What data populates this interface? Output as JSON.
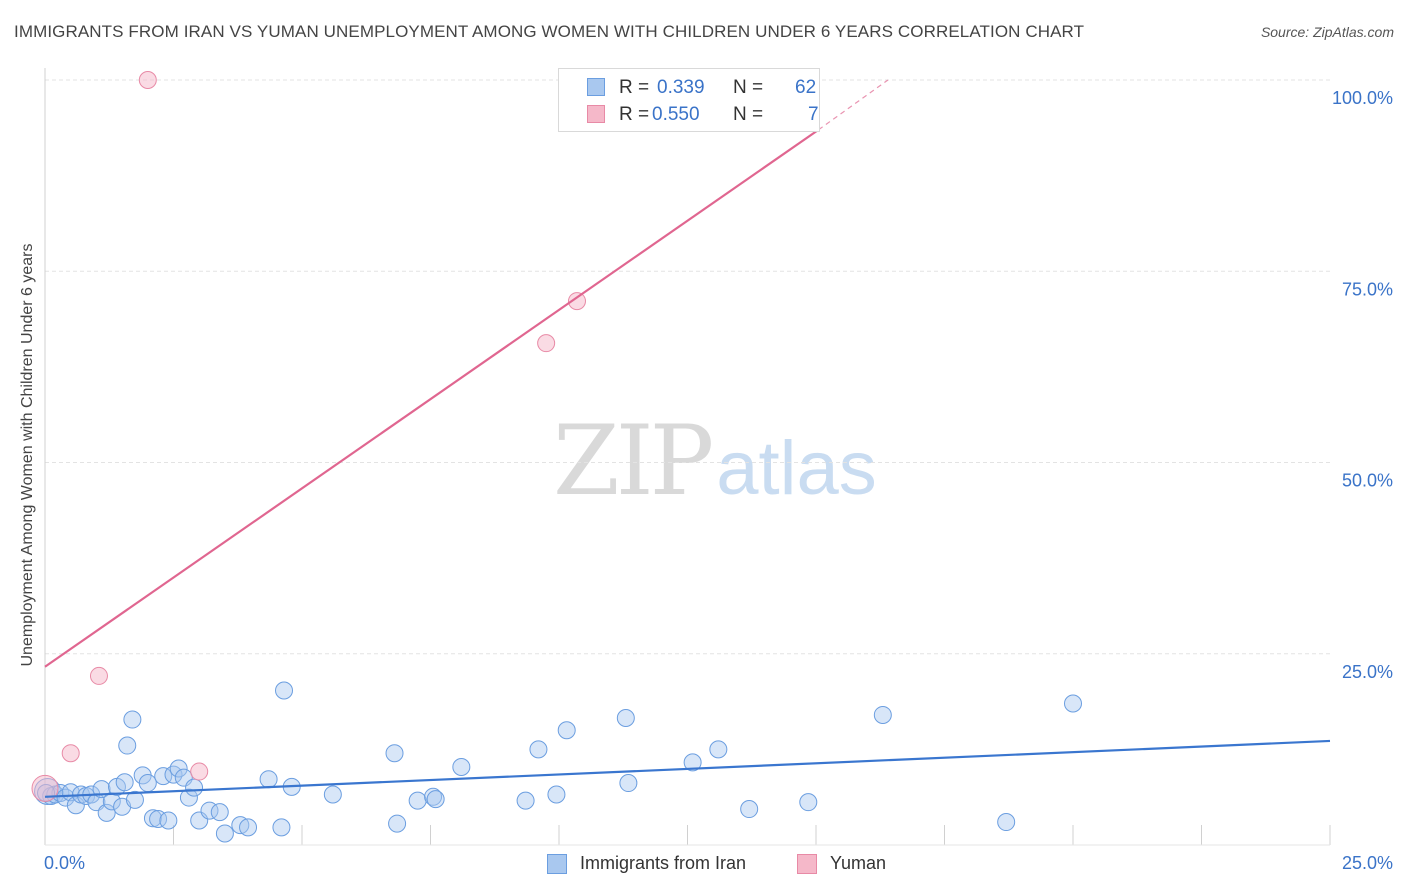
{
  "header": {
    "title": "IMMIGRANTS FROM IRAN VS YUMAN UNEMPLOYMENT AMONG WOMEN WITH CHILDREN UNDER 6 YEARS CORRELATION CHART",
    "source": "Source: ZipAtlas.com"
  },
  "watermark": {
    "zip": "ZIP",
    "atlas": "atlas"
  },
  "colors": {
    "blue_fill": "#a9c8ef",
    "blue_stroke": "#6b9ee0",
    "blue_line": "#3a76cf",
    "pink_fill": "#f5b8c9",
    "pink_stroke": "#e88aa6",
    "pink_line": "#e06690",
    "tick_text": "#3a73c8",
    "grid": "#e3e3e3"
  },
  "legend_top": {
    "rows": [
      {
        "r_label": "R =",
        "r_value": "0.339",
        "n_label": "N =",
        "n_value": "62"
      },
      {
        "r_label": "R =",
        "r_value": "0.550",
        "n_label": "N =",
        "n_value": "7"
      }
    ]
  },
  "legend_bottom": {
    "items": [
      "Immigrants from Iran",
      "Yuman"
    ]
  },
  "chart_data": {
    "type": "scatter",
    "title": "IMMIGRANTS FROM IRAN VS YUMAN UNEMPLOYMENT AMONG WOMEN WITH CHILDREN UNDER 6 YEARS CORRELATION CHART",
    "xlabel": "",
    "ylabel": "Unemployment Among Women with Children Under 6 years",
    "xlim": [
      0,
      25
    ],
    "ylim": [
      0,
      100
    ],
    "x_tick_labels": [
      "0.0%",
      "25.0%"
    ],
    "y_ticks": [
      25,
      50,
      75,
      100
    ],
    "y_tick_labels": [
      "25.0%",
      "50.0%",
      "75.0%",
      "100.0%"
    ],
    "grid": true,
    "series": [
      {
        "name": "Immigrants from Iran",
        "points": [
          [
            0.05,
            7.0
          ],
          [
            0.12,
            6.4
          ],
          [
            0.2,
            6.6
          ],
          [
            0.3,
            6.8
          ],
          [
            0.4,
            6.2
          ],
          [
            0.5,
            6.9
          ],
          [
            0.6,
            5.2
          ],
          [
            0.7,
            6.6
          ],
          [
            0.8,
            6.4
          ],
          [
            0.9,
            6.6
          ],
          [
            1.0,
            5.6
          ],
          [
            1.1,
            7.3
          ],
          [
            1.2,
            4.2
          ],
          [
            1.3,
            5.7
          ],
          [
            1.4,
            7.6
          ],
          [
            1.5,
            5.0
          ],
          [
            1.55,
            8.2
          ],
          [
            1.6,
            13.0
          ],
          [
            1.7,
            16.4
          ],
          [
            1.75,
            5.9
          ],
          [
            1.9,
            9.1
          ],
          [
            2.0,
            8.1
          ],
          [
            2.1,
            3.5
          ],
          [
            2.2,
            3.4
          ],
          [
            2.3,
            9.0
          ],
          [
            2.4,
            3.2
          ],
          [
            2.5,
            9.2
          ],
          [
            2.6,
            10.0
          ],
          [
            2.7,
            8.8
          ],
          [
            2.8,
            6.2
          ],
          [
            2.9,
            7.5
          ],
          [
            3.0,
            3.2
          ],
          [
            3.2,
            4.5
          ],
          [
            3.4,
            4.3
          ],
          [
            3.5,
            1.5
          ],
          [
            3.8,
            2.6
          ],
          [
            3.95,
            2.3
          ],
          [
            4.35,
            8.6
          ],
          [
            4.6,
            2.3
          ],
          [
            4.65,
            20.2
          ],
          [
            4.8,
            7.6
          ],
          [
            5.6,
            6.6
          ],
          [
            6.8,
            12.0
          ],
          [
            6.85,
            2.8
          ],
          [
            7.25,
            5.8
          ],
          [
            7.55,
            6.3
          ],
          [
            7.6,
            6.0
          ],
          [
            8.1,
            10.2
          ],
          [
            9.35,
            5.8
          ],
          [
            9.6,
            12.5
          ],
          [
            9.95,
            6.6
          ],
          [
            10.15,
            15.0
          ],
          [
            11.3,
            16.6
          ],
          [
            11.35,
            8.1
          ],
          [
            12.6,
            10.8
          ],
          [
            13.1,
            12.5
          ],
          [
            13.7,
            4.7
          ],
          [
            14.85,
            5.6
          ],
          [
            16.3,
            17.0
          ],
          [
            18.7,
            3.0
          ],
          [
            20.0,
            18.5
          ],
          [
            0.02,
            6.8
          ]
        ],
        "trend": {
          "x": [
            0,
            25
          ],
          "y": [
            6.3,
            13.6
          ]
        }
      },
      {
        "name": "Yuman",
        "points": [
          [
            0.0,
            7.4
          ],
          [
            0.5,
            12.0
          ],
          [
            1.05,
            22.1
          ],
          [
            2.0,
            100.0
          ],
          [
            3.0,
            9.6
          ],
          [
            9.75,
            65.6
          ],
          [
            10.35,
            71.1
          ]
        ],
        "trend": {
          "x": [
            0,
            15.05
          ],
          "y": [
            23.3,
            93.5
          ],
          "dashed_to": {
            "x": 16.4,
            "y": 100
          }
        }
      }
    ]
  }
}
